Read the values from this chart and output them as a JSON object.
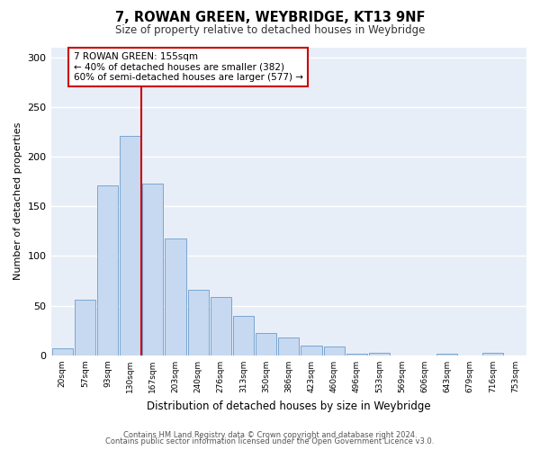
{
  "title": "7, ROWAN GREEN, WEYBRIDGE, KT13 9NF",
  "subtitle": "Size of property relative to detached houses in Weybridge",
  "xlabel": "Distribution of detached houses by size in Weybridge",
  "ylabel": "Number of detached properties",
  "bar_labels": [
    "20sqm",
    "57sqm",
    "93sqm",
    "130sqm",
    "167sqm",
    "203sqm",
    "240sqm",
    "276sqm",
    "313sqm",
    "350sqm",
    "386sqm",
    "423sqm",
    "460sqm",
    "496sqm",
    "533sqm",
    "569sqm",
    "606sqm",
    "643sqm",
    "679sqm",
    "716sqm",
    "753sqm"
  ],
  "bar_heights": [
    7,
    56,
    171,
    221,
    173,
    118,
    66,
    59,
    40,
    23,
    18,
    10,
    9,
    2,
    3,
    0,
    0,
    2,
    0,
    3,
    0
  ],
  "bar_color": "#c6d9f0",
  "bar_edge_color": "#7ca6d0",
  "vline_x": 3.5,
  "vline_color": "#cc0000",
  "annotation_text": "7 ROWAN GREEN: 155sqm\n← 40% of detached houses are smaller (382)\n60% of semi-detached houses are larger (577) →",
  "annotation_box_color": "#ffffff",
  "annotation_box_edge": "#cc0000",
  "ylim": [
    0,
    310
  ],
  "yticks": [
    0,
    50,
    100,
    150,
    200,
    250,
    300
  ],
  "footer_line1": "Contains HM Land Registry data © Crown copyright and database right 2024.",
  "footer_line2": "Contains public sector information licensed under the Open Government Licence v3.0.",
  "plot_bg_color": "#e8eef8",
  "fig_bg_color": "#ffffff",
  "grid_color": "#ffffff"
}
